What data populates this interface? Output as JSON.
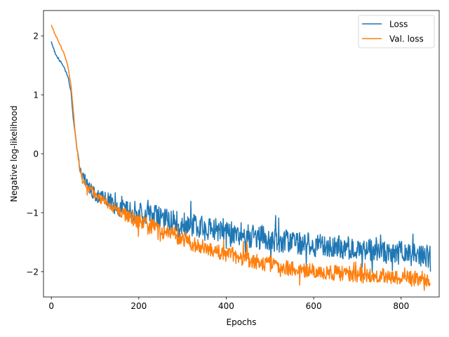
{
  "chart_data": {
    "type": "line",
    "xlabel": "Epochs",
    "ylabel": "Negative log-likelihood",
    "xlim": [
      -18,
      887
    ],
    "ylim": [
      -2.43,
      2.43
    ],
    "xticks": [
      0,
      200,
      400,
      600,
      800
    ],
    "yticks": [
      2,
      1,
      0,
      -1,
      -2
    ],
    "grid": false,
    "legend_position": "top-right",
    "epochs": 867,
    "series": [
      {
        "name": "Loss",
        "color": "#1f77b4",
        "noise": 0.2,
        "points": [
          [
            0,
            1.9
          ],
          [
            10,
            1.68
          ],
          [
            20,
            1.58
          ],
          [
            30,
            1.45
          ],
          [
            38,
            1.3
          ],
          [
            45,
            1.05
          ],
          [
            50,
            0.6
          ],
          [
            55,
            0.3
          ],
          [
            60,
            0.0
          ],
          [
            65,
            -0.25
          ],
          [
            70,
            -0.35
          ],
          [
            80,
            -0.5
          ],
          [
            100,
            -0.7
          ],
          [
            130,
            -0.8
          ],
          [
            160,
            -0.95
          ],
          [
            200,
            -1.0
          ],
          [
            250,
            -1.1
          ],
          [
            300,
            -1.2
          ],
          [
            350,
            -1.25
          ],
          [
            400,
            -1.3
          ],
          [
            450,
            -1.4
          ],
          [
            500,
            -1.45
          ],
          [
            550,
            -1.5
          ],
          [
            600,
            -1.55
          ],
          [
            650,
            -1.58
          ],
          [
            700,
            -1.62
          ],
          [
            750,
            -1.65
          ],
          [
            800,
            -1.68
          ],
          [
            850,
            -1.72
          ],
          [
            867,
            -1.75
          ]
        ],
        "end_value": -2.0
      },
      {
        "name": "Val. loss",
        "color": "#ff7f0e",
        "noise": 0.13,
        "points": [
          [
            0,
            2.18
          ],
          [
            10,
            2.0
          ],
          [
            20,
            1.85
          ],
          [
            30,
            1.68
          ],
          [
            38,
            1.48
          ],
          [
            45,
            1.15
          ],
          [
            50,
            0.75
          ],
          [
            55,
            0.3
          ],
          [
            60,
            0.0
          ],
          [
            65,
            -0.25
          ],
          [
            70,
            -0.4
          ],
          [
            80,
            -0.55
          ],
          [
            100,
            -0.7
          ],
          [
            130,
            -0.85
          ],
          [
            160,
            -1.0
          ],
          [
            200,
            -1.15
          ],
          [
            250,
            -1.3
          ],
          [
            300,
            -1.45
          ],
          [
            350,
            -1.6
          ],
          [
            400,
            -1.7
          ],
          [
            450,
            -1.8
          ],
          [
            500,
            -1.88
          ],
          [
            550,
            -1.95
          ],
          [
            600,
            -2.0
          ],
          [
            650,
            -2.02
          ],
          [
            700,
            -2.05
          ],
          [
            750,
            -2.07
          ],
          [
            800,
            -2.1
          ],
          [
            850,
            -2.12
          ],
          [
            867,
            -2.13
          ]
        ],
        "end_value": -2.2
      }
    ]
  }
}
